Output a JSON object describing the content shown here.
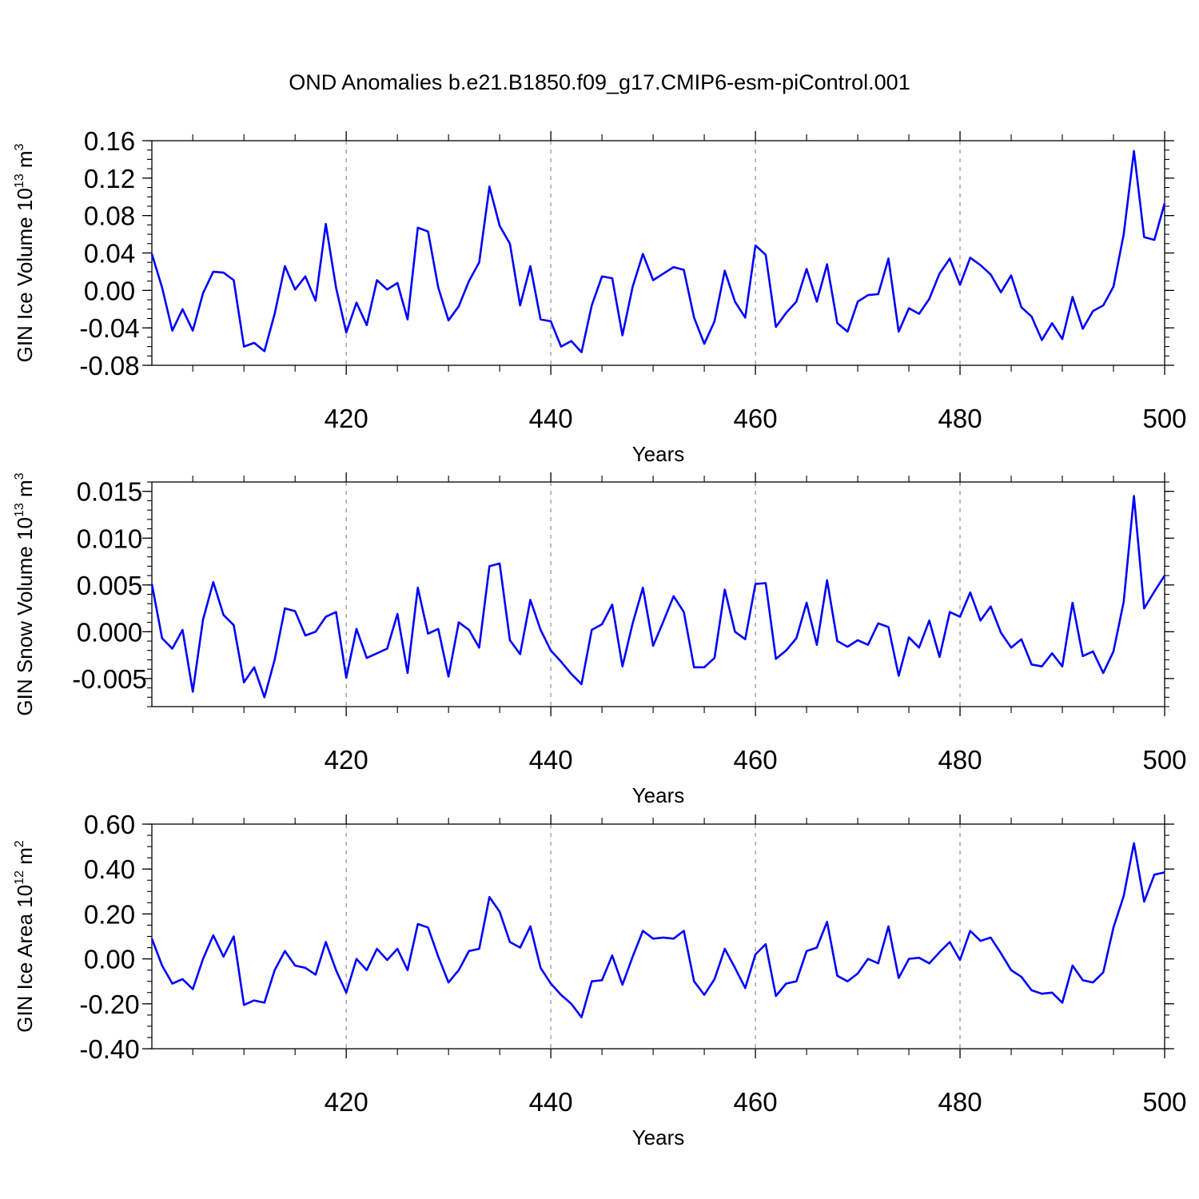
{
  "title": "OND Anomalies b.e21.B1850.f09_g17.CMIP6-esm-piControl.001",
  "colors": {
    "line": "#0000ff",
    "axis": "#000000",
    "grid": "#999999"
  },
  "chart_data": [
    {
      "type": "line",
      "name": "ice-volume",
      "ylabel_main": "GIN Ice Volume 10",
      "ylabel_exp": "13",
      "ylabel_unit": " m",
      "ylabel_unit_exp": "3",
      "xlabel": "Years",
      "xlim": [
        401,
        500
      ],
      "ylim": [
        -0.08,
        0.16
      ],
      "xticks": [
        420,
        440,
        460,
        480,
        500
      ],
      "xtick_labels": [
        "420",
        "440",
        "460",
        "480",
        "500"
      ],
      "yticks": [
        -0.08,
        -0.04,
        0.0,
        0.04,
        0.08,
        0.12,
        0.16
      ],
      "ytick_labels": [
        "-0.08",
        "-0.04",
        "0.00",
        "0.04",
        "0.08",
        "0.12",
        "0.16"
      ],
      "yminor_step": 0.01,
      "series": [
        {
          "name": "GIN Ice Volume",
          "values": [
            0.039,
            0.003,
            -0.043,
            -0.02,
            -0.043,
            -0.003,
            0.02,
            0.019,
            0.011,
            -0.06,
            -0.056,
            -0.065,
            -0.025,
            0.026,
            0.001,
            0.015,
            -0.011,
            0.071,
            0.003,
            -0.045,
            -0.013,
            -0.037,
            0.011,
            0.001,
            0.008,
            -0.031,
            0.067,
            0.063,
            0.003,
            -0.032,
            -0.017,
            0.01,
            0.03,
            0.111,
            0.069,
            0.05,
            -0.016,
            0.026,
            -0.031,
            -0.033,
            -0.06,
            -0.054,
            -0.066,
            -0.016,
            0.015,
            0.013,
            -0.048,
            0.004,
            0.039,
            0.011,
            0.018,
            0.025,
            0.022,
            -0.029,
            -0.057,
            -0.033,
            0.021,
            -0.012,
            -0.029,
            0.048,
            0.038,
            -0.039,
            -0.024,
            -0.012,
            0.023,
            -0.012,
            0.028,
            -0.035,
            -0.044,
            -0.012,
            -0.005,
            -0.004,
            0.034,
            -0.044,
            -0.019,
            -0.025,
            -0.009,
            0.018,
            0.034,
            0.006,
            0.035,
            0.027,
            0.017,
            -0.002,
            0.016,
            -0.018,
            -0.028,
            -0.053,
            -0.035,
            -0.052,
            -0.007,
            -0.041,
            -0.022,
            -0.016,
            0.004,
            0.06,
            0.149,
            0.057,
            0.054,
            0.093
          ]
        }
      ]
    },
    {
      "type": "line",
      "name": "snow-volume",
      "ylabel_main": "GIN Snow Volume 10",
      "ylabel_exp": "13",
      "ylabel_unit": " m",
      "ylabel_unit_exp": "3",
      "xlabel": "Years",
      "xlim": [
        401,
        500
      ],
      "ylim": [
        -0.008,
        0.016
      ],
      "xticks": [
        420,
        440,
        460,
        480,
        500
      ],
      "xtick_labels": [
        "420",
        "440",
        "460",
        "480",
        "500"
      ],
      "yticks": [
        -0.005,
        0.0,
        0.005,
        0.01,
        0.015
      ],
      "ytick_labels": [
        "-0.005",
        "0.000",
        "0.005",
        "0.010",
        "0.015"
      ],
      "yminor_step": 0.001,
      "series": [
        {
          "name": "GIN Snow Volume",
          "values": [
            0.0051,
            -0.0007,
            -0.0018,
            0.0002,
            -0.0064,
            0.0013,
            0.0053,
            0.0018,
            0.0007,
            -0.0054,
            -0.0038,
            -0.007,
            -0.003,
            0.0025,
            0.0022,
            -0.0004,
            0.0,
            0.0016,
            0.0021,
            -0.0049,
            0.0003,
            -0.0028,
            -0.0023,
            -0.0018,
            0.0019,
            -0.0044,
            0.0047,
            -0.0002,
            0.0003,
            -0.0048,
            0.001,
            0.0002,
            -0.0017,
            0.007,
            0.0073,
            -0.0009,
            -0.0024,
            0.0034,
            0.0002,
            -0.002,
            -0.0032,
            -0.0045,
            -0.0056,
            0.0002,
            0.0008,
            0.0029,
            -0.0037,
            0.0009,
            0.0047,
            -0.0015,
            0.0011,
            0.0038,
            0.0021,
            -0.0038,
            -0.0038,
            -0.0028,
            0.0045,
            0.0,
            -0.0008,
            0.0051,
            0.0052,
            -0.0029,
            -0.002,
            -0.0007,
            0.0031,
            -0.0014,
            0.0055,
            -0.001,
            -0.0016,
            -0.0009,
            -0.0014,
            0.0009,
            0.0005,
            -0.0047,
            -0.0006,
            -0.0017,
            0.0012,
            -0.0027,
            0.0021,
            0.0016,
            0.0042,
            0.0012,
            0.0027,
            -0.0001,
            -0.0017,
            -0.0008,
            -0.0035,
            -0.0037,
            -0.0023,
            -0.0037,
            0.0031,
            -0.0026,
            -0.0021,
            -0.0044,
            -0.0021,
            0.0032,
            0.0145,
            0.0025,
            0.0043,
            0.006
          ]
        }
      ]
    },
    {
      "type": "line",
      "name": "ice-area",
      "ylabel_main": "GIN Ice Area 10",
      "ylabel_exp": "12",
      "ylabel_unit": " m",
      "ylabel_unit_exp": "2",
      "xlabel": "Years",
      "xlim": [
        401,
        500
      ],
      "ylim": [
        -0.4,
        0.6
      ],
      "xticks": [
        420,
        440,
        460,
        480,
        500
      ],
      "xtick_labels": [
        "420",
        "440",
        "460",
        "480",
        "500"
      ],
      "yticks": [
        -0.4,
        -0.2,
        0.0,
        0.2,
        0.4,
        0.6
      ],
      "ytick_labels": [
        "-0.40",
        "-0.20",
        "0.00",
        "0.20",
        "0.40",
        "0.60"
      ],
      "yminor_step": 0.05,
      "series": [
        {
          "name": "GIN Ice Area",
          "values": [
            0.09,
            -0.03,
            -0.11,
            -0.09,
            -0.135,
            0.0,
            0.105,
            0.01,
            0.1,
            -0.205,
            -0.185,
            -0.195,
            -0.05,
            0.035,
            -0.03,
            -0.04,
            -0.07,
            0.075,
            -0.05,
            -0.15,
            0.0,
            -0.05,
            0.045,
            -0.005,
            0.045,
            -0.05,
            0.155,
            0.14,
            0.01,
            -0.105,
            -0.05,
            0.035,
            0.045,
            0.275,
            0.21,
            0.075,
            0.05,
            0.145,
            -0.04,
            -0.11,
            -0.16,
            -0.2,
            -0.26,
            -0.1,
            -0.095,
            0.015,
            -0.115,
            0.01,
            0.125,
            0.09,
            0.095,
            0.09,
            0.125,
            -0.1,
            -0.16,
            -0.09,
            0.045,
            -0.04,
            -0.13,
            0.02,
            0.065,
            -0.165,
            -0.11,
            -0.1,
            0.035,
            0.05,
            0.165,
            -0.075,
            -0.1,
            -0.065,
            0.0,
            -0.02,
            0.145,
            -0.085,
            0.0,
            0.005,
            -0.02,
            0.03,
            0.075,
            -0.005,
            0.125,
            0.08,
            0.095,
            0.025,
            -0.05,
            -0.08,
            -0.14,
            -0.155,
            -0.15,
            -0.195,
            -0.03,
            -0.095,
            -0.105,
            -0.06,
            0.14,
            0.28,
            0.515,
            0.255,
            0.375,
            0.385
          ]
        }
      ]
    }
  ]
}
